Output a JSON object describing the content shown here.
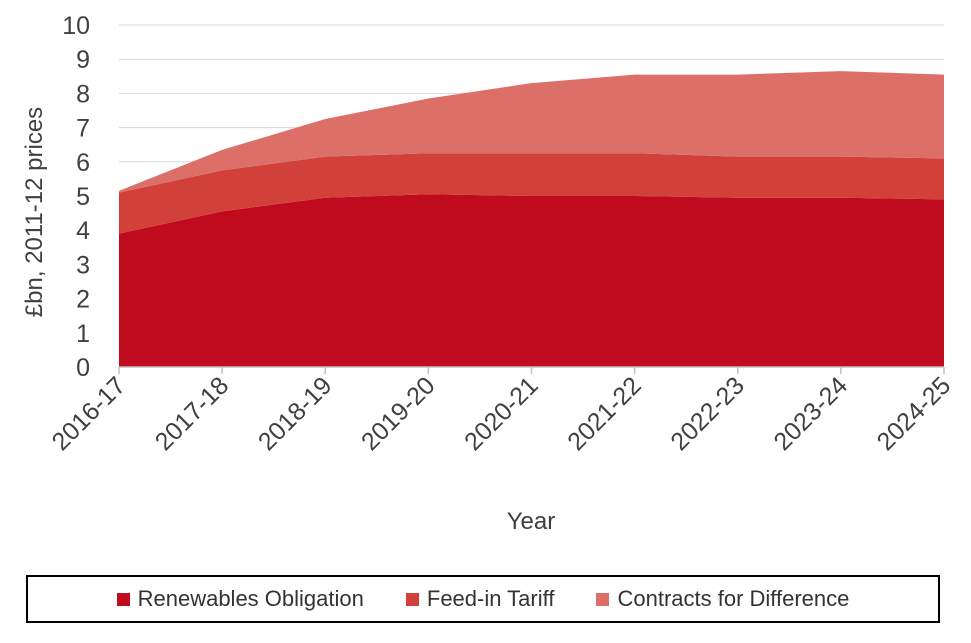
{
  "chart_data": {
    "type": "area",
    "stacked": true,
    "ylabel": "£bn, 2011-12 prices",
    "xlabel": "Year",
    "ylim": [
      0,
      10
    ],
    "yticks": [
      "0",
      "1",
      "2",
      "3",
      "4",
      "5",
      "6",
      "7",
      "8",
      "9",
      "10"
    ],
    "categories": [
      "2016-17",
      "2017-18",
      "2018-19",
      "2019-20",
      "2020-21",
      "2021-22",
      "2022-23",
      "2023-24",
      "2024-25"
    ],
    "series": [
      {
        "name": "Renewables Obligation",
        "color": "#c00a1e",
        "values": [
          3.9,
          4.55,
          4.95,
          5.05,
          5.0,
          5.0,
          4.95,
          4.95,
          4.9
        ]
      },
      {
        "name": "Feed-in Tariff",
        "color": "#d1413a",
        "values": [
          1.2,
          1.2,
          1.2,
          1.2,
          1.25,
          1.25,
          1.2,
          1.2,
          1.2
        ]
      },
      {
        "name": "Contracts for Difference",
        "color": "#dc7068",
        "values": [
          0.05,
          0.6,
          1.1,
          1.6,
          2.05,
          2.3,
          2.4,
          2.5,
          2.45
        ]
      }
    ],
    "legend_position": "bottom",
    "grid": true
  }
}
